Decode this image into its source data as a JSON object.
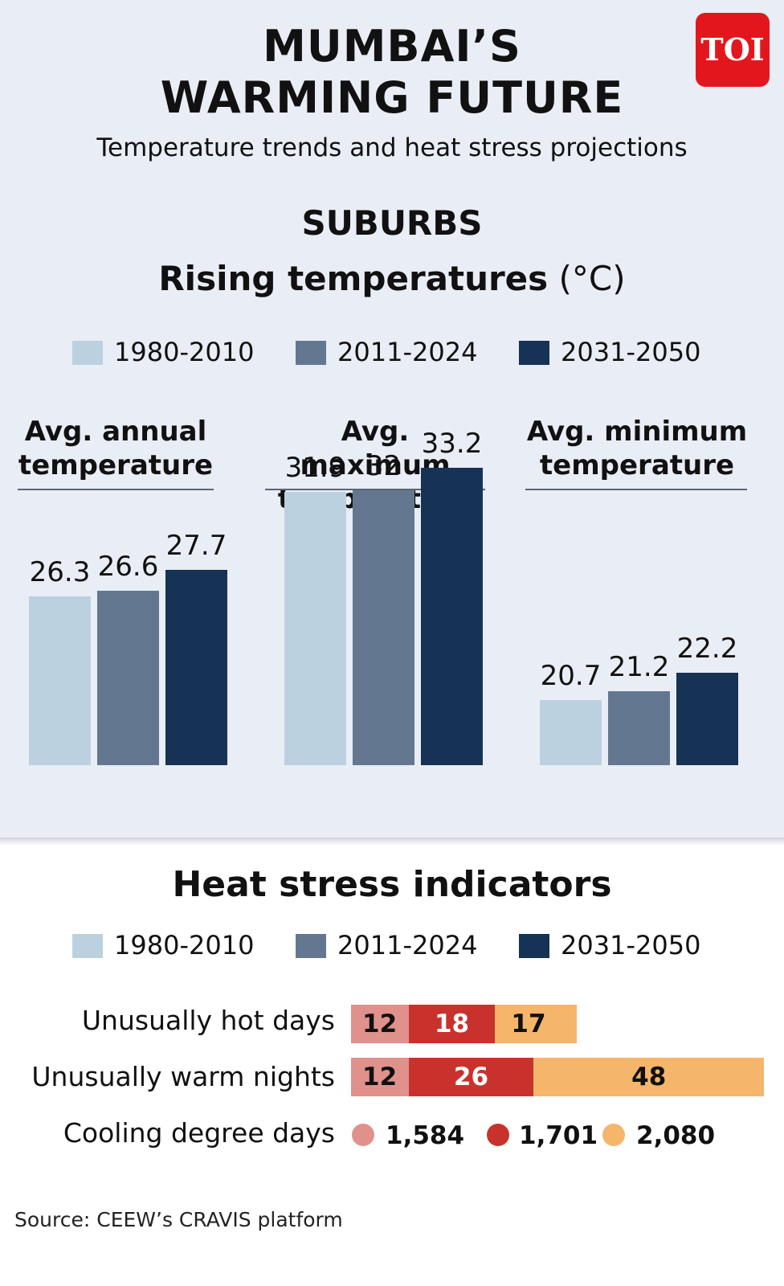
{
  "header": {
    "title_line1": "MUMBAI’S",
    "title_line2": "WARMING FUTURE",
    "subtitle": "Temperature trends and heat stress projections",
    "logo": "TOI"
  },
  "section": "SUBURBS",
  "chart_title_main": "Rising temperatures",
  "chart_title_unit": "(°C)",
  "colors": {
    "p1": "#bcd1df",
    "p2": "#637890",
    "p3": "#163254",
    "hot1": "#e0918c",
    "hot2": "#c9322c",
    "hot3": "#f5b56b"
  },
  "legend": [
    "1980-2010",
    "2011-2024",
    "2031-2050"
  ],
  "chart_data": {
    "type": "bar",
    "title": "Rising temperatures (°C)",
    "series_names": [
      "1980-2010",
      "2011-2024",
      "2031-2050"
    ],
    "groups": [
      {
        "label_line1": "Avg. annual",
        "label_line2": "temperature",
        "values": [
          26.3,
          26.6,
          27.7
        ]
      },
      {
        "label_line1": "Avg. maximum",
        "label_line2": "temperature",
        "values": [
          31.9,
          32,
          33.2
        ]
      },
      {
        "label_line1": "Avg. minimum",
        "label_line2": "temperature",
        "values": [
          20.7,
          21.2,
          22.2
        ]
      }
    ]
  },
  "heat": {
    "title": "Heat stress indicators",
    "legend": [
      "1980-2010",
      "2011-2024",
      "2031-2050"
    ],
    "rows": [
      {
        "label": "Unusually hot days",
        "values": [
          12,
          18,
          17
        ]
      },
      {
        "label": "Unusually warm nights",
        "values": [
          12,
          26,
          48
        ]
      }
    ],
    "cdd_label": "Cooling degree days",
    "cdd_values": [
      "1,584",
      "1,701",
      "2,080"
    ]
  },
  "source": "Source: CEEW’s CRAVIS platform"
}
